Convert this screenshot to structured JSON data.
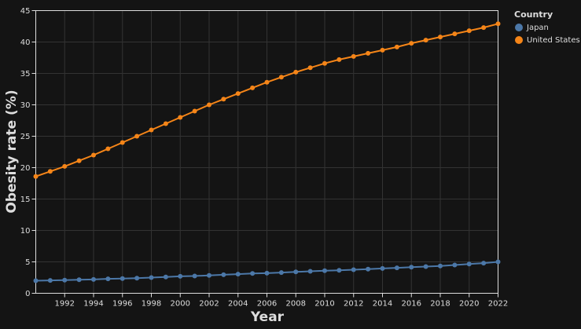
{
  "chart_data": {
    "type": "line",
    "xlabel": "Year",
    "ylabel": "Obesity rate (%)",
    "xlim": [
      1990,
      2022
    ],
    "ylim": [
      0,
      45
    ],
    "x_ticks": [
      1992,
      1994,
      1996,
      1998,
      2000,
      2002,
      2004,
      2006,
      2008,
      2010,
      2012,
      2014,
      2016,
      2018,
      2020,
      2022
    ],
    "y_ticks": [
      0,
      5,
      10,
      15,
      20,
      25,
      30,
      35,
      40,
      45
    ],
    "grid": true,
    "legend": {
      "title": "Country",
      "position": "right"
    },
    "x": [
      1990,
      1991,
      1992,
      1993,
      1994,
      1995,
      1996,
      1997,
      1998,
      1999,
      2000,
      2001,
      2002,
      2003,
      2004,
      2005,
      2006,
      2007,
      2008,
      2009,
      2010,
      2011,
      2012,
      2013,
      2014,
      2015,
      2016,
      2017,
      2018,
      2019,
      2020,
      2021,
      2022
    ],
    "series": [
      {
        "name": "Japan",
        "color": "#4c78a8",
        "values": [
          2.0,
          2.05,
          2.1,
          2.15,
          2.2,
          2.3,
          2.35,
          2.4,
          2.5,
          2.6,
          2.7,
          2.75,
          2.85,
          2.95,
          3.05,
          3.15,
          3.2,
          3.3,
          3.4,
          3.5,
          3.6,
          3.65,
          3.75,
          3.85,
          3.95,
          4.05,
          4.15,
          4.25,
          4.35,
          4.5,
          4.65,
          4.8,
          5.0
        ]
      },
      {
        "name": "United States",
        "color": "#f58518",
        "values": [
          18.6,
          19.4,
          20.2,
          21.1,
          22.0,
          23.0,
          24.0,
          25.0,
          26.0,
          27.0,
          28.0,
          29.0,
          30.0,
          30.9,
          31.8,
          32.7,
          33.6,
          34.4,
          35.2,
          35.9,
          36.6,
          37.2,
          37.7,
          38.2,
          38.7,
          39.2,
          39.8,
          40.3,
          40.8,
          41.3,
          41.8,
          42.3,
          42.9
        ]
      }
    ]
  }
}
